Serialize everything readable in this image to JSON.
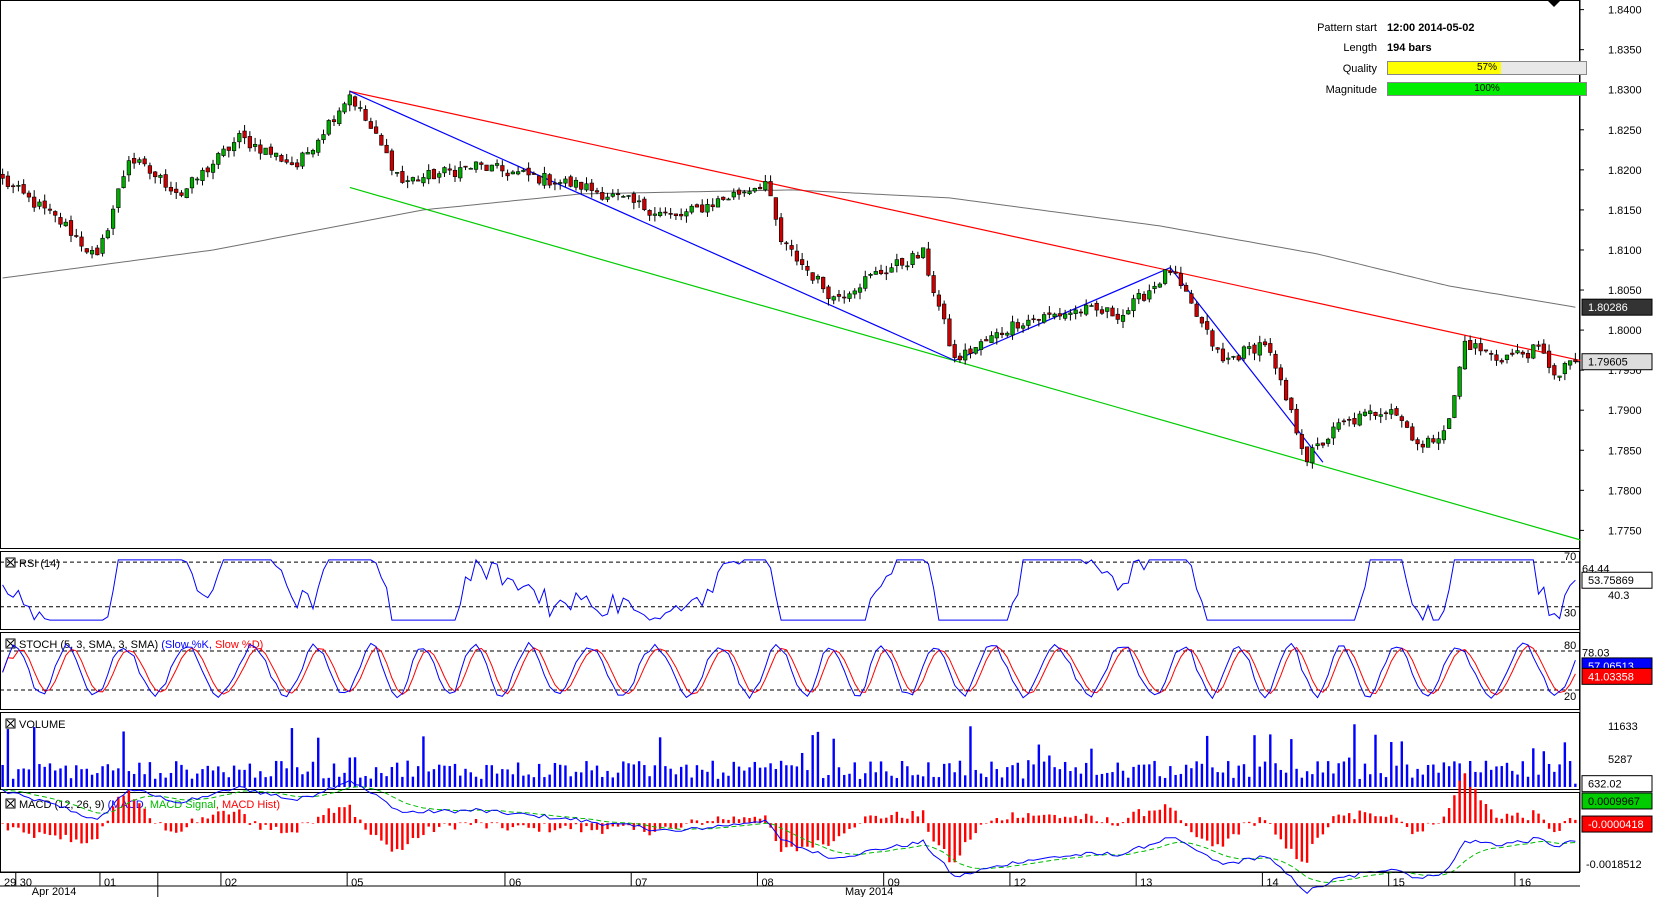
{
  "pattern_info": {
    "pattern_start_label": "Pattern start",
    "pattern_start_value": "12:00 2014-05-02",
    "length_label": "Length",
    "length_value": "194 bars",
    "quality_label": "Quality",
    "quality_value": "57%",
    "quality_fraction": 0.57,
    "magnitude_label": "Magnitude",
    "magnitude_value": "100%",
    "magnitude_fraction": 1.0
  },
  "colors": {
    "bull": "#00aa00",
    "bear": "#cc0000",
    "resistance": "#ff0000",
    "support": "#00cc00",
    "pattern": "#0000ff",
    "ma": "#707070",
    "quality": "#ffff00",
    "magnitude": "#00ee00"
  },
  "chart_data": [
    {
      "type": "candlestick",
      "name": "price",
      "yticks": [
        "1.8400",
        "1.8350",
        "1.8300",
        "1.8250",
        "1.8200",
        "1.8150",
        "1.8100",
        "1.8050",
        "1.8000",
        "1.7950",
        "1.7900",
        "1.7850",
        "1.7800",
        "1.7750"
      ],
      "ylim": [
        1.7728,
        1.8412
      ],
      "value_tags": [
        "1.80286",
        "1.79605"
      ],
      "ma_last": 1.80286,
      "last_close": 1.79605,
      "anchors": [
        {
          "x": 0,
          "y": 1.8187
        },
        {
          "x": 12,
          "y": 1.813
        },
        {
          "x": 18,
          "y": 1.8088
        },
        {
          "x": 24,
          "y": 1.8215
        },
        {
          "x": 34,
          "y": 1.817
        },
        {
          "x": 45,
          "y": 1.824
        },
        {
          "x": 56,
          "y": 1.8205
        },
        {
          "x": 66,
          "y": 1.8295
        },
        {
          "x": 76,
          "y": 1.8185
        },
        {
          "x": 90,
          "y": 1.8205
        },
        {
          "x": 110,
          "y": 1.818
        },
        {
          "x": 128,
          "y": 1.814
        },
        {
          "x": 145,
          "y": 1.8185
        },
        {
          "x": 148,
          "y": 1.811
        },
        {
          "x": 158,
          "y": 1.804
        },
        {
          "x": 166,
          "y": 1.807
        },
        {
          "x": 175,
          "y": 1.8095
        },
        {
          "x": 181,
          "y": 1.7962
        },
        {
          "x": 193,
          "y": 1.801
        },
        {
          "x": 205,
          "y": 1.8025
        },
        {
          "x": 213,
          "y": 1.802
        },
        {
          "x": 222,
          "y": 1.8075
        },
        {
          "x": 232,
          "y": 1.796
        },
        {
          "x": 240,
          "y": 1.7985
        },
        {
          "x": 248,
          "y": 1.784
        },
        {
          "x": 254,
          "y": 1.788
        },
        {
          "x": 264,
          "y": 1.7905
        },
        {
          "x": 270,
          "y": 1.7852
        },
        {
          "x": 275,
          "y": 1.7885
        },
        {
          "x": 278,
          "y": 1.7985
        },
        {
          "x": 284,
          "y": 1.7965
        },
        {
          "x": 292,
          "y": 1.7975
        },
        {
          "x": 296,
          "y": 1.794
        },
        {
          "x": 299,
          "y": 1.7975
        }
      ],
      "ma_points": [
        {
          "x": 0,
          "y": 1.8065
        },
        {
          "x": 40,
          "y": 1.81
        },
        {
          "x": 80,
          "y": 1.815
        },
        {
          "x": 110,
          "y": 1.817
        },
        {
          "x": 150,
          "y": 1.8175
        },
        {
          "x": 180,
          "y": 1.8165
        },
        {
          "x": 220,
          "y": 1.813
        },
        {
          "x": 250,
          "y": 1.8095
        },
        {
          "x": 275,
          "y": 1.8055
        },
        {
          "x": 299,
          "y": 1.80286
        }
      ],
      "resistance_line": {
        "x1": 66,
        "y1": 1.8298,
        "x2": 300,
        "y2": 1.7962
      },
      "support_line": {
        "x1": 66,
        "y1": 1.8178,
        "x2": 300,
        "y2": 1.7738
      },
      "zigzag": [
        {
          "x": 66,
          "y": 1.8298
        },
        {
          "x": 181,
          "y": 1.7962
        },
        {
          "x": 222,
          "y": 1.8078
        },
        {
          "x": 251,
          "y": 1.7835
        }
      ]
    },
    {
      "type": "line",
      "name": "RSI (14)",
      "ylim": [
        10,
        80
      ],
      "levels": [
        "70",
        "30"
      ],
      "extra_ticks": [
        "64.44",
        "40.3"
      ],
      "last_value": "53.75869"
    },
    {
      "type": "line",
      "name": "STOCH (5, 3, SMA, 3, SMA)",
      "series": [
        {
          "name": "Slow %K",
          "color": "#0000ff"
        },
        {
          "name": "Slow %D",
          "color": "#ff0000"
        }
      ],
      "levels": [
        "80",
        "20"
      ],
      "extra_ticks": [
        "78.03"
      ],
      "last_values": [
        "57.06513",
        "41.03358"
      ]
    },
    {
      "type": "bar",
      "name": "VOLUME",
      "yticks": [
        "11633",
        "5287"
      ],
      "ylim": [
        0,
        13500
      ],
      "last_value": "632.02"
    },
    {
      "type": "line",
      "name": "MACD (12, 26, 9)",
      "series": [
        {
          "name": "MACD",
          "color": "#0000ff"
        },
        {
          "name": "MACD Signal",
          "color": "#00bb00"
        },
        {
          "name": "MACD Hist",
          "color": "#ff0000"
        }
      ],
      "ylim": [
        -0.0022,
        0.0014
      ],
      "yticks": [
        "-0.0018512"
      ],
      "last_values": [
        "0.0009967",
        "-0.0000418"
      ]
    }
  ],
  "x_axis": {
    "day_labels": [
      "29",
      "30",
      "01",
      "02",
      "05",
      "06",
      "07",
      "08",
      "09",
      "12",
      "13",
      "14",
      "15",
      "16"
    ],
    "month_labels": [
      "Apr 2014",
      "May 2014"
    ]
  }
}
